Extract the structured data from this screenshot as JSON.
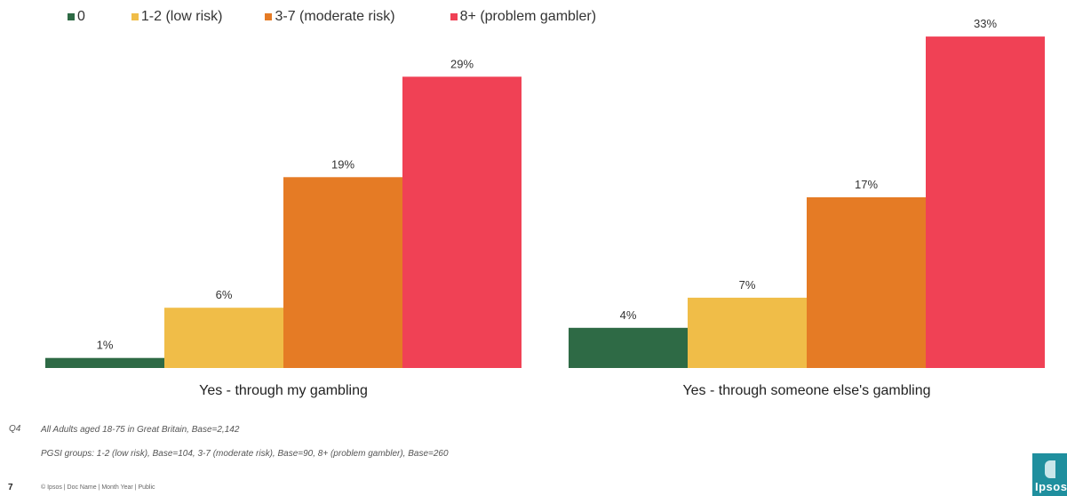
{
  "legend": [
    {
      "label": "0",
      "color": "#2e6a45"
    },
    {
      "label": "1-2 (low risk)",
      "color": "#f0bd48"
    },
    {
      "label": "3-7 (moderate risk)",
      "color": "#e57b25"
    },
    {
      "label": "8+ (problem gambler)",
      "color": "#f04155"
    }
  ],
  "chart_data": {
    "type": "bar",
    "categories": [
      "Yes - through my gambling",
      "Yes - through someone else's gambling"
    ],
    "series": [
      {
        "name": "0",
        "values": [
          1,
          4
        ],
        "color": "#2e6a45"
      },
      {
        "name": "1-2 (low risk)",
        "values": [
          6,
          7
        ],
        "color": "#f0bd48"
      },
      {
        "name": "3-7 (moderate risk)",
        "values": [
          19,
          17
        ],
        "color": "#e57b25"
      },
      {
        "name": "8+ (problem gambler)",
        "values": [
          29,
          33
        ],
        "color": "#f04155"
      }
    ],
    "value_suffix": "%",
    "ylim": [
      0,
      35
    ],
    "grid": false,
    "legend_position": "top-left"
  },
  "notes": {
    "qcode": "Q4",
    "base_all": "All Adults aged 18-75 in Great Britain, Base=2,142",
    "base_groups": "PGSI groups: 1-2 (low risk), Base=104, 3-7 (moderate risk), Base=90, 8+ (problem gambler), Base=260"
  },
  "footer": {
    "page_number": "7",
    "text": "© Ipsos | Doc Name | Month Year | Public"
  },
  "logo": {
    "text": "Ipsos"
  }
}
